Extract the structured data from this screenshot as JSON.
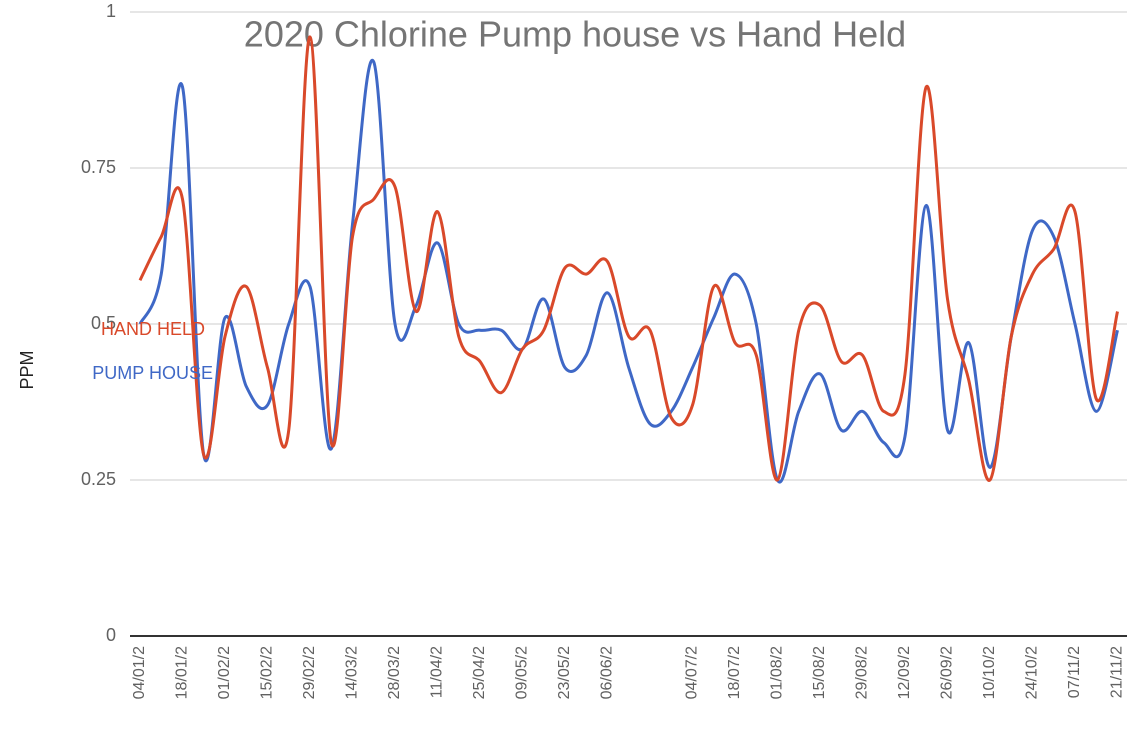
{
  "chart_data": {
    "type": "line",
    "title": "2020 Chlorine Pump house vs Hand Held",
    "y_label": "PPM",
    "categories": [
      "04/01/2",
      null,
      "18/01/2",
      null,
      "01/02/2",
      null,
      "15/02/2",
      null,
      "29/02/2",
      null,
      "14/03/2",
      null,
      "28/03/2",
      null,
      "11/04/2",
      null,
      "25/04/2",
      null,
      "09/05/2",
      null,
      "23/05/2",
      null,
      "06/06/2",
      null,
      null,
      null,
      "04/07/2",
      null,
      "18/07/2",
      null,
      "01/08/2",
      null,
      "15/08/2",
      null,
      "29/08/2",
      null,
      "12/09/2",
      null,
      "26/09/2",
      null,
      "10/10/2",
      null,
      "24/10/2",
      null,
      "07/11/2",
      null,
      "21/11/2"
    ],
    "series": [
      {
        "name": "HAND HELD",
        "color": "#d9492a",
        "values": [
          0.57,
          0.64,
          0.7,
          0.29,
          0.48,
          0.56,
          0.43,
          0.33,
          0.96,
          0.31,
          0.64,
          0.7,
          0.72,
          0.52,
          0.68,
          0.48,
          0.44,
          0.39,
          0.46,
          0.49,
          0.59,
          0.58,
          0.6,
          0.48,
          0.49,
          0.35,
          0.37,
          0.56,
          0.47,
          0.45,
          0.25,
          0.49,
          0.53,
          0.44,
          0.45,
          0.36,
          0.42,
          0.88,
          0.54,
          0.41,
          0.25,
          0.48,
          0.58,
          0.62,
          0.68,
          0.38,
          0.52
        ]
      },
      {
        "name": "PUMP HOUSE",
        "color": "#3f68c6",
        "values": [
          0.5,
          0.58,
          0.88,
          0.29,
          0.51,
          0.4,
          0.37,
          0.5,
          0.56,
          0.3,
          0.66,
          0.92,
          0.5,
          0.53,
          0.63,
          0.5,
          0.49,
          0.49,
          0.46,
          0.54,
          0.43,
          0.45,
          0.55,
          0.43,
          0.34,
          0.36,
          0.43,
          0.51,
          0.58,
          0.5,
          0.25,
          0.36,
          0.42,
          0.33,
          0.36,
          0.31,
          0.32,
          0.69,
          0.33,
          0.47,
          0.27,
          0.48,
          0.65,
          0.64,
          0.5,
          0.36,
          0.49
        ]
      }
    ],
    "ylim": [
      0,
      1
    ],
    "yticks": [
      0,
      0.25,
      0.5,
      0.75,
      1
    ],
    "grid": true,
    "smooth": true,
    "legend": "left"
  }
}
